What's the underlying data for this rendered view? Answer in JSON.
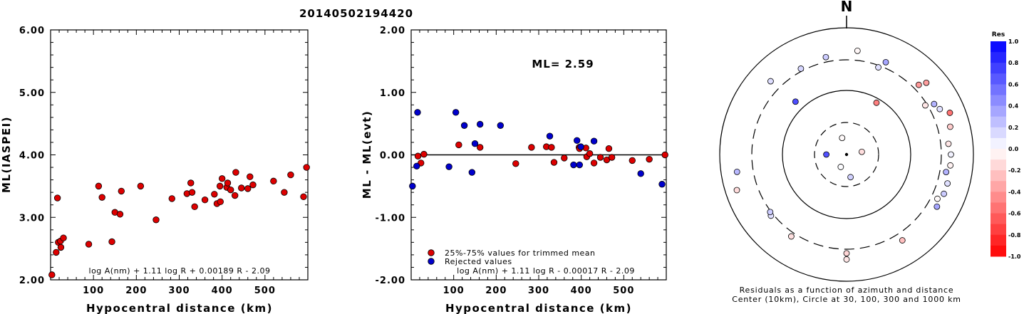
{
  "event_id": "20140502194420",
  "chart_data": [
    {
      "type": "scatter",
      "xlabel": "Hypocentral distance (km)",
      "ylabel": "ML(IASPEI)",
      "xlim": [
        0,
        600
      ],
      "ylim": [
        2.0,
        6.0
      ],
      "xticks": [
        "100",
        "200",
        "300",
        "400",
        "500"
      ],
      "yticks": [
        "2.00",
        "3.00",
        "4.00",
        "5.00",
        "6.00"
      ],
      "formula": "log A(nm) + 1.11 log R + 0.00189 R - 2.09",
      "marker_color": "#dd0000",
      "series": [
        {
          "x": [
            3,
            13,
            16,
            18,
            23,
            24,
            30,
            89,
            112,
            120,
            143,
            150,
            162,
            165,
            210,
            246,
            283,
            318,
            327,
            330,
            336,
            360,
            382,
            388,
            395,
            396,
            400,
            411,
            413,
            420,
            430,
            432,
            445,
            460,
            465,
            472,
            520,
            545,
            560,
            590,
            597
          ],
          "y": [
            2.08,
            2.44,
            3.31,
            2.6,
            2.62,
            2.52,
            2.67,
            2.57,
            3.5,
            3.32,
            2.61,
            3.08,
            3.05,
            3.42,
            3.5,
            2.96,
            3.3,
            3.38,
            3.55,
            3.4,
            3.17,
            3.28,
            3.37,
            3.22,
            3.5,
            3.25,
            3.62,
            3.48,
            3.55,
            3.44,
            3.35,
            3.72,
            3.47,
            3.46,
            3.65,
            3.52,
            3.58,
            3.4,
            3.68,
            3.33,
            3.8
          ]
        }
      ]
    },
    {
      "type": "scatter",
      "xlabel": "Hypocentral distance (km)",
      "ylabel": "ML - ML(evt)",
      "xlim": [
        0,
        600
      ],
      "ylim": [
        -2.0,
        2.0
      ],
      "xticks": [
        "100",
        "200",
        "300",
        "400",
        "500"
      ],
      "yticks": [
        "-2.00",
        "-1.00",
        "0.00",
        "1.00",
        "2.00"
      ],
      "annotation": "ML= 2.59",
      "formula": "log A(nm) + 1.11 log R - 0.00017 R - 2.09",
      "series": [
        {
          "name": "25%-75% values for trimmed mean",
          "color": "#dd0000",
          "x": [
            16,
            23,
            30,
            112,
            162,
            246,
            283,
            318,
            330,
            336,
            360,
            395,
            396,
            411,
            413,
            420,
            430,
            445,
            460,
            465,
            472,
            520,
            560,
            597
          ],
          "y": [
            -0.02,
            -0.13,
            0.01,
            0.16,
            0.12,
            -0.14,
            0.12,
            0.13,
            0.12,
            -0.12,
            -0.05,
            0.12,
            0.1,
            0.11,
            -0.03,
            0.02,
            -0.13,
            -0.04,
            -0.08,
            0.1,
            -0.04,
            -0.09,
            -0.07,
            0.0
          ]
        },
        {
          "name": "Rejected values",
          "color": "#0000cc",
          "x": [
            3,
            13,
            15,
            89,
            105,
            125,
            143,
            150,
            162,
            210,
            326,
            382,
            390,
            396,
            399,
            430,
            540,
            590
          ],
          "y": [
            -0.5,
            -0.18,
            0.68,
            -0.19,
            0.68,
            0.47,
            -0.28,
            0.18,
            0.49,
            0.47,
            0.3,
            -0.16,
            0.23,
            -0.16,
            0.13,
            0.22,
            -0.3,
            -0.47
          ]
        }
      ]
    },
    {
      "type": "scatter",
      "subtype": "polar residual map",
      "north_label": "N",
      "caption_line1": "Residuals as a function of azimuth and distance",
      "caption_line2": "Center (10km), Circle at 30, 100, 300 and 1000 km",
      "colorbar": {
        "title": "Res",
        "ticks": [
          "1.0",
          "0.8",
          "0.6",
          "0.4",
          "0.2",
          "0.0",
          "-0.2",
          "-0.4",
          "-0.6",
          "-0.8",
          "-1.0"
        ],
        "positive_color": "#0000ff",
        "negative_color": "#ff0000"
      },
      "stations": [
        {
          "az": 270,
          "dist": 20,
          "res": 0.68
        },
        {
          "az": 345,
          "dist": 18,
          "res": -0.02
        },
        {
          "az": 80,
          "dist": 17,
          "res": -0.13
        },
        {
          "az": 205,
          "dist": 16,
          "res": 0.01
        },
        {
          "az": 170,
          "dist": 22,
          "res": 0.18
        },
        {
          "az": 30,
          "dist": 85,
          "res": -0.5
        },
        {
          "az": 6,
          "dist": 430,
          "res": -0.03
        },
        {
          "az": 332,
          "dist": 330,
          "res": 0.16
        },
        {
          "az": 348,
          "dist": 360,
          "res": 0.2
        },
        {
          "az": 314,
          "dist": 450,
          "res": 0.13
        },
        {
          "az": 316,
          "dist": 140,
          "res": 0.7
        },
        {
          "az": 23,
          "dist": 370,
          "res": 0.35
        },
        {
          "az": 20,
          "dist": 280,
          "res": 0.12
        },
        {
          "az": 48,
          "dist": 480,
          "res": -0.38
        },
        {
          "az": 46,
          "dist": 370,
          "res": -0.4
        },
        {
          "az": 60,
          "dist": 380,
          "res": 0.3
        },
        {
          "az": 58,
          "dist": 280,
          "res": -0.1
        },
        {
          "az": 68,
          "dist": 560,
          "res": -0.55
        },
        {
          "az": 64,
          "dist": 420,
          "res": 0.12
        },
        {
          "az": 75,
          "dist": 480,
          "res": -0.2
        },
        {
          "az": 84,
          "dist": 400,
          "res": -0.1
        },
        {
          "az": 90,
          "dist": 430,
          "res": 0.05
        },
        {
          "az": 96,
          "dist": 430,
          "res": -0.05
        },
        {
          "az": 100,
          "dist": 380,
          "res": 0.3
        },
        {
          "az": 106,
          "dist": 440,
          "res": 0.12
        },
        {
          "az": 112,
          "dist": 440,
          "res": 0.2
        },
        {
          "az": 120,
          "dist": 430,
          "res": 0.35
        },
        {
          "az": 116,
          "dist": 380,
          "res": -0.02
        },
        {
          "az": 147,
          "dist": 400,
          "res": -0.25
        },
        {
          "az": 180,
          "dist": 350,
          "res": -0.16
        },
        {
          "az": 180,
          "dist": 440,
          "res": -0.1
        },
        {
          "az": 214,
          "dist": 350,
          "res": -0.12
        },
        {
          "az": 231,
          "dist": 330,
          "res": 0.12
        },
        {
          "az": 233,
          "dist": 310,
          "res": 0.2
        },
        {
          "az": 261,
          "dist": 550,
          "res": 0.28
        },
        {
          "az": 252,
          "dist": 650,
          "res": -0.14
        }
      ]
    }
  ]
}
